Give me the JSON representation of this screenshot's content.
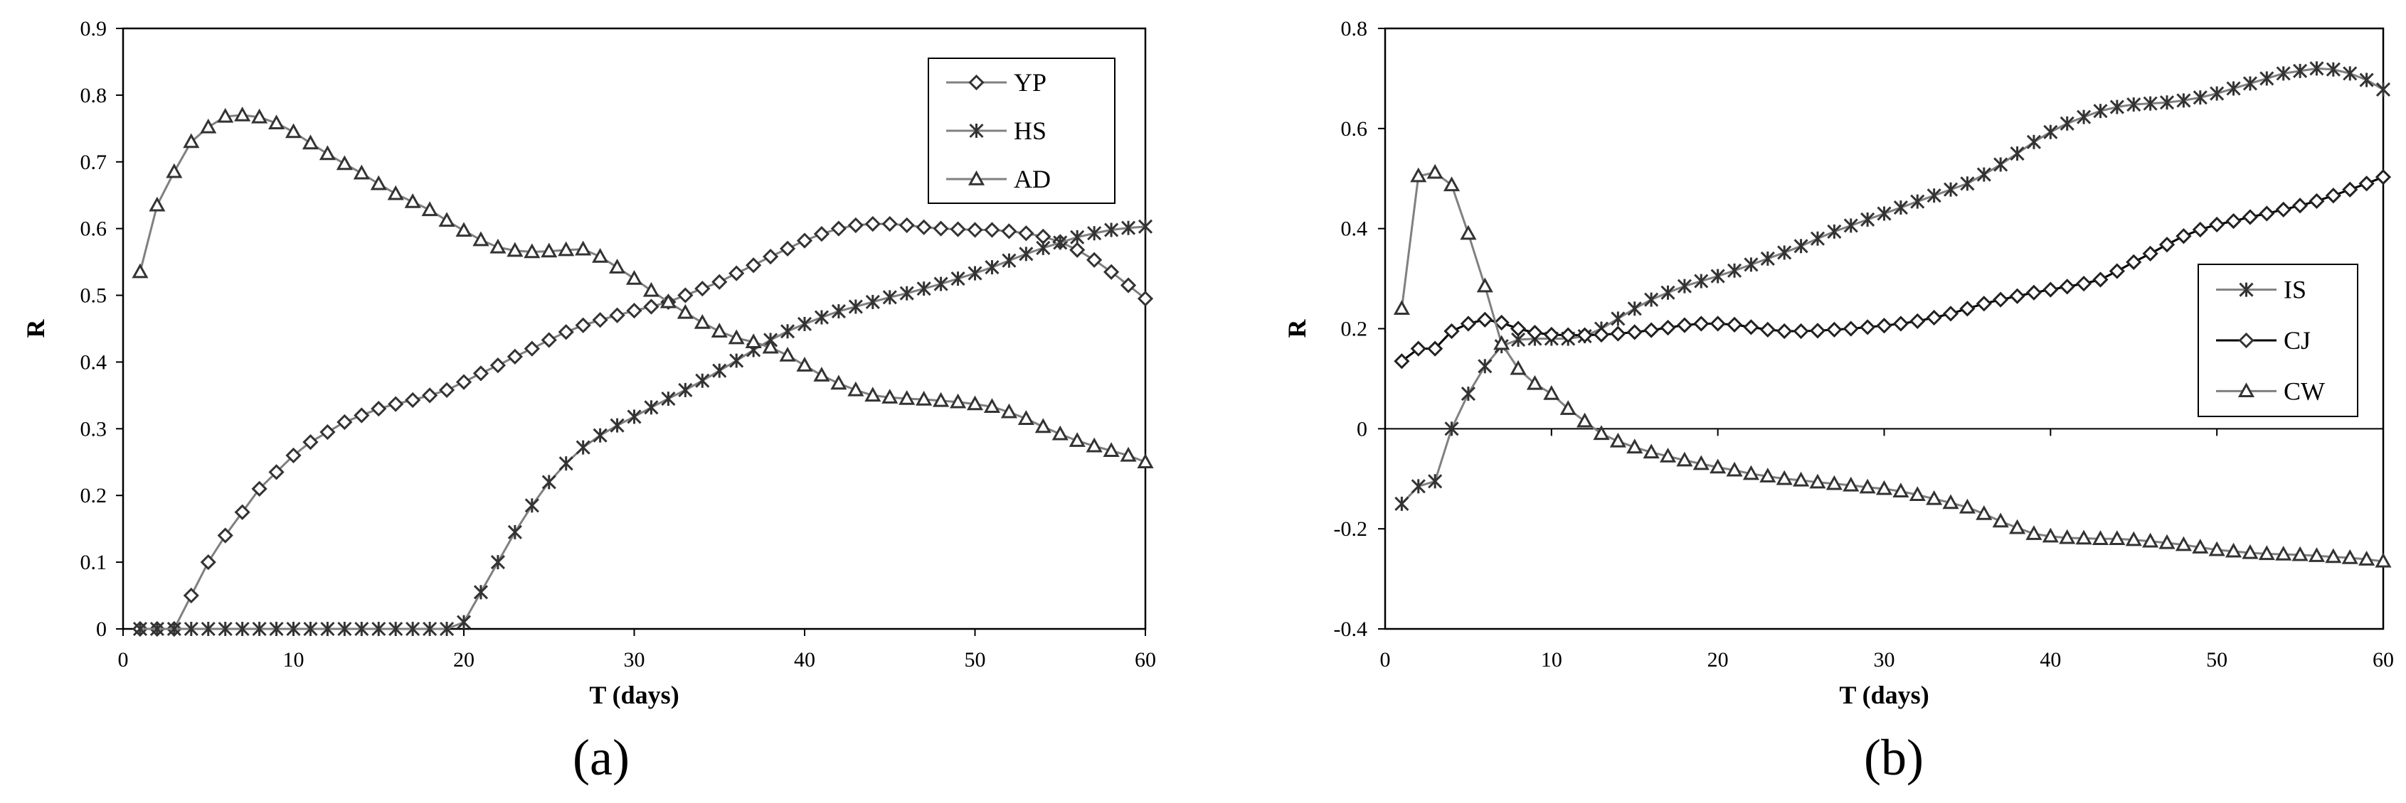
{
  "chart_data": [
    {
      "type": "line",
      "panel_label": "(a)",
      "xlabel": "T (days)",
      "ylabel": "R",
      "xlim": [
        0,
        60
      ],
      "ylim": [
        0,
        0.9
      ],
      "xticks": [
        0,
        10,
        20,
        30,
        40,
        50,
        60
      ],
      "yticks": [
        0,
        0.1,
        0.2,
        0.3,
        0.4,
        0.5,
        0.6,
        0.7,
        0.8,
        0.9
      ],
      "ytick_labels": [
        "0",
        "0.1",
        "0.2",
        "0.3",
        "0.4",
        "0.5",
        "0.6",
        "0.7",
        "0.8",
        "0.9"
      ],
      "legend_position": "top-right",
      "x_start": 1,
      "series": [
        {
          "name": "YP",
          "marker": "diamond",
          "line_color": "#808080",
          "values": [
            0,
            0,
            0,
            0.05,
            0.1,
            0.14,
            0.175,
            0.21,
            0.235,
            0.26,
            0.28,
            0.295,
            0.31,
            0.32,
            0.33,
            0.337,
            0.343,
            0.35,
            0.358,
            0.37,
            0.383,
            0.395,
            0.408,
            0.42,
            0.433,
            0.445,
            0.455,
            0.463,
            0.47,
            0.477,
            0.483,
            0.49,
            0.5,
            0.51,
            0.52,
            0.533,
            0.545,
            0.558,
            0.57,
            0.582,
            0.592,
            0.6,
            0.605,
            0.607,
            0.607,
            0.605,
            0.602,
            0.6,
            0.599,
            0.598,
            0.598,
            0.596,
            0.593,
            0.588,
            0.58,
            0.568,
            0.553,
            0.535,
            0.515,
            0.495
          ]
        },
        {
          "name": "HS",
          "marker": "asterisk",
          "line_color": "#808080",
          "values": [
            0,
            0,
            0,
            0,
            0,
            0,
            0,
            0,
            0,
            0,
            0,
            0,
            0,
            0,
            0,
            0,
            0,
            0,
            0,
            0.01,
            0.055,
            0.1,
            0.145,
            0.185,
            0.22,
            0.248,
            0.272,
            0.29,
            0.305,
            0.318,
            0.332,
            0.345,
            0.358,
            0.372,
            0.387,
            0.402,
            0.418,
            0.433,
            0.446,
            0.457,
            0.467,
            0.476,
            0.483,
            0.49,
            0.497,
            0.503,
            0.51,
            0.517,
            0.525,
            0.533,
            0.542,
            0.552,
            0.562,
            0.571,
            0.579,
            0.587,
            0.593,
            0.598,
            0.601,
            0.603
          ]
        },
        {
          "name": "AD",
          "marker": "triangle",
          "line_color": "#808080",
          "values": [
            0.535,
            0.635,
            0.685,
            0.73,
            0.752,
            0.768,
            0.77,
            0.767,
            0.758,
            0.745,
            0.728,
            0.712,
            0.697,
            0.683,
            0.667,
            0.652,
            0.64,
            0.628,
            0.612,
            0.597,
            0.583,
            0.572,
            0.567,
            0.565,
            0.566,
            0.568,
            0.569,
            0.558,
            0.542,
            0.525,
            0.507,
            0.49,
            0.474,
            0.459,
            0.446,
            0.436,
            0.43,
            0.422,
            0.41,
            0.395,
            0.38,
            0.368,
            0.358,
            0.35,
            0.347,
            0.345,
            0.344,
            0.342,
            0.34,
            0.337,
            0.333,
            0.325,
            0.315,
            0.303,
            0.292,
            0.282,
            0.274,
            0.267,
            0.26,
            0.25
          ]
        }
      ]
    },
    {
      "type": "line",
      "panel_label": "(b)",
      "xlabel": "T (days)",
      "ylabel": "R",
      "xlim": [
        0,
        60
      ],
      "ylim": [
        -0.4,
        0.8
      ],
      "xticks": [
        0,
        10,
        20,
        30,
        40,
        50,
        60
      ],
      "yticks": [
        -0.4,
        -0.2,
        0,
        0.2,
        0.4,
        0.6,
        0.8
      ],
      "ytick_labels": [
        "-0.4",
        "-0.2",
        "0",
        "0.2",
        "0.4",
        "0.6",
        "0.8"
      ],
      "legend_position": "right",
      "x_start": 1,
      "series": [
        {
          "name": "IS",
          "marker": "asterisk",
          "line_color": "#808080",
          "values": [
            -0.15,
            -0.115,
            -0.105,
            0,
            0.07,
            0.125,
            0.165,
            0.178,
            0.18,
            0.18,
            0.18,
            0.185,
            0.2,
            0.22,
            0.24,
            0.258,
            0.272,
            0.285,
            0.295,
            0.305,
            0.316,
            0.328,
            0.34,
            0.352,
            0.365,
            0.38,
            0.394,
            0.406,
            0.418,
            0.43,
            0.442,
            0.454,
            0.466,
            0.478,
            0.49,
            0.508,
            0.528,
            0.55,
            0.573,
            0.593,
            0.61,
            0.623,
            0.635,
            0.643,
            0.648,
            0.65,
            0.652,
            0.656,
            0.662,
            0.67,
            0.68,
            0.69,
            0.7,
            0.71,
            0.715,
            0.72,
            0.718,
            0.71,
            0.697,
            0.678
          ]
        },
        {
          "name": "CJ",
          "marker": "diamond",
          "line_color": "#000000",
          "values": [
            0.135,
            0.16,
            0.16,
            0.195,
            0.21,
            0.218,
            0.212,
            0.2,
            0.192,
            0.188,
            0.187,
            0.187,
            0.188,
            0.19,
            0.193,
            0.197,
            0.202,
            0.207,
            0.21,
            0.21,
            0.208,
            0.203,
            0.198,
            0.195,
            0.195,
            0.196,
            0.198,
            0.2,
            0.203,
            0.206,
            0.21,
            0.215,
            0.222,
            0.23,
            0.24,
            0.25,
            0.258,
            0.265,
            0.272,
            0.278,
            0.284,
            0.29,
            0.298,
            0.315,
            0.333,
            0.35,
            0.368,
            0.385,
            0.398,
            0.408,
            0.415,
            0.423,
            0.43,
            0.438,
            0.446,
            0.455,
            0.466,
            0.478,
            0.49,
            0.503
          ]
        },
        {
          "name": "CW",
          "marker": "triangle",
          "line_color": "#808080",
          "values": [
            0.24,
            0.505,
            0.512,
            0.487,
            0.39,
            0.285,
            0.17,
            0.12,
            0.09,
            0.07,
            0.04,
            0.015,
            -0.01,
            -0.025,
            -0.037,
            -0.047,
            -0.055,
            -0.063,
            -0.07,
            -0.077,
            -0.083,
            -0.09,
            -0.095,
            -0.1,
            -0.103,
            -0.107,
            -0.11,
            -0.113,
            -0.117,
            -0.12,
            -0.125,
            -0.132,
            -0.14,
            -0.148,
            -0.157,
            -0.17,
            -0.185,
            -0.198,
            -0.21,
            -0.215,
            -0.218,
            -0.219,
            -0.22,
            -0.22,
            -0.222,
            -0.225,
            -0.228,
            -0.232,
            -0.237,
            -0.242,
            -0.245,
            -0.248,
            -0.25,
            -0.251,
            -0.252,
            -0.254,
            -0.256,
            -0.258,
            -0.261,
            -0.265
          ]
        }
      ]
    }
  ]
}
